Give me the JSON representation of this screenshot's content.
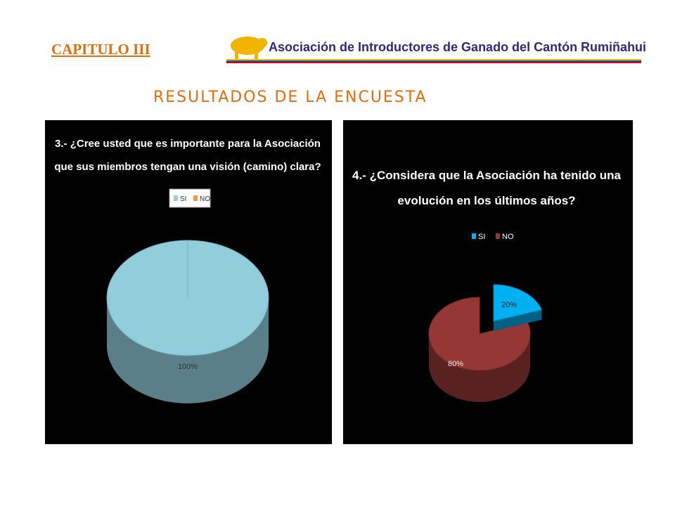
{
  "header": {
    "chapter": "CAPITULO III",
    "logo_text": "Asociación de Introductores de Ganado del Cantón Rumiñahui",
    "headline": "RESULTADOS DE LA ENCUESTA"
  },
  "chart_data": [
    {
      "type": "pie",
      "title": "3.- ¿Cree usted que es importante para la Asociación que sus miembros tengan una visión (camino) clara?",
      "title_lines": [
        "3.- ¿Cree usted que es importante para la Asociación",
        "que sus miembros tengan una visión (camino) clara?"
      ],
      "legend": [
        "SI",
        "NO"
      ],
      "legend_position": "top",
      "categories": [
        "SI",
        "NO"
      ],
      "values": [
        100,
        0
      ],
      "labels": [
        "100%",
        ""
      ],
      "colors": [
        "#92cddc",
        "#f79646"
      ]
    },
    {
      "type": "pie",
      "title": "4.- ¿Considera que la Asociación ha tenido una evolución en los últimos años?",
      "title_lines": [
        "4.- ¿Considera que la Asociación ha tenido una",
        "evolución en los últimos años?"
      ],
      "legend": [
        "SI",
        "NO"
      ],
      "legend_position": "top",
      "categories": [
        "SI",
        "NO"
      ],
      "values": [
        20,
        80
      ],
      "labels": [
        "20%",
        "80%"
      ],
      "colors": [
        "#00b0f0",
        "#953735"
      ]
    }
  ]
}
